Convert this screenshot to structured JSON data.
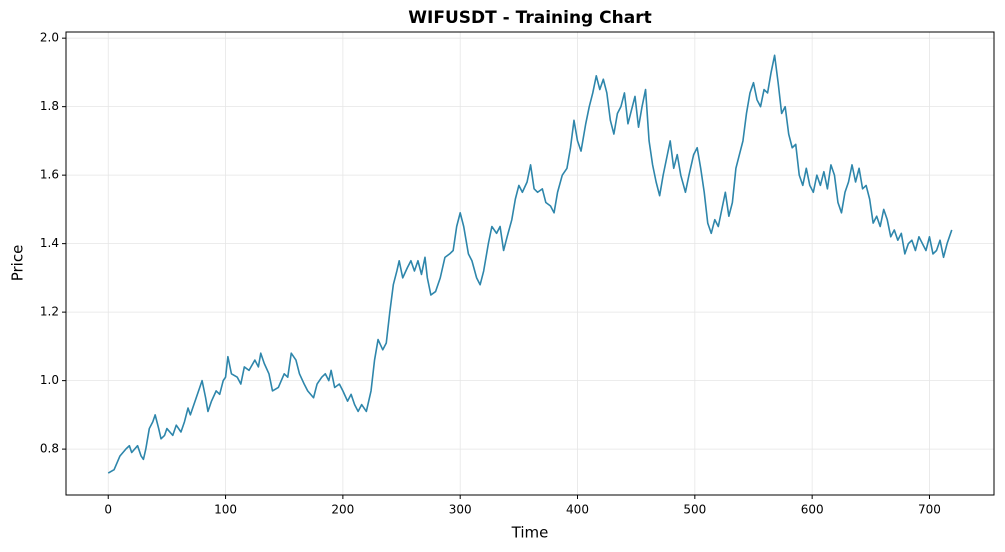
{
  "chart_data": {
    "type": "line",
    "title": "WIFUSDT - Training Chart",
    "x_label": "Time",
    "y_label": "Price",
    "x": [
      0,
      5,
      10,
      15,
      18,
      20,
      25,
      28,
      30,
      32,
      35,
      38,
      40,
      43,
      45,
      48,
      50,
      55,
      58,
      62,
      65,
      68,
      70,
      75,
      78,
      80,
      83,
      85,
      88,
      92,
      95,
      98,
      100,
      102,
      105,
      110,
      113,
      116,
      120,
      125,
      128,
      130,
      133,
      137,
      140,
      145,
      150,
      153,
      156,
      160,
      163,
      167,
      170,
      175,
      178,
      182,
      185,
      188,
      190,
      193,
      197,
      200,
      204,
      207,
      210,
      213,
      216,
      220,
      224,
      227,
      230,
      234,
      237,
      240,
      243,
      246,
      248,
      251,
      255,
      258,
      261,
      264,
      267,
      270,
      272,
      275,
      279,
      283,
      287,
      291,
      294,
      297,
      300,
      303,
      307,
      310,
      314,
      317,
      320,
      324,
      327,
      331,
      334,
      337,
      340,
      344,
      347,
      350,
      353,
      357,
      360,
      363,
      366,
      370,
      373,
      377,
      380,
      383,
      387,
      391,
      394,
      397,
      400,
      403,
      407,
      410,
      413,
      416,
      419,
      422,
      425,
      428,
      431,
      434,
      437,
      440,
      443,
      446,
      449,
      452,
      455,
      458,
      461,
      464,
      467,
      470,
      473,
      476,
      479,
      482,
      485,
      488,
      492,
      495,
      499,
      502,
      505,
      508,
      511,
      514,
      517,
      520,
      523,
      526,
      529,
      532,
      535,
      538,
      541,
      544,
      547,
      550,
      553,
      556,
      559,
      562,
      565,
      568,
      571,
      574,
      577,
      580,
      583,
      586,
      589,
      592,
      595,
      598,
      601,
      604,
      607,
      610,
      613,
      616,
      619,
      622,
      625,
      628,
      631,
      634,
      637,
      640,
      643,
      646,
      649,
      652,
      655,
      658,
      661,
      664,
      667,
      670,
      673,
      676,
      679,
      682,
      685,
      688,
      691,
      694,
      697,
      700,
      703,
      706,
      709,
      712,
      715,
      719
    ],
    "series": [
      {
        "name": "WIFUSDT",
        "color": "#2e86ab",
        "values": [
          0.73,
          0.74,
          0.78,
          0.8,
          0.81,
          0.79,
          0.81,
          0.78,
          0.77,
          0.8,
          0.86,
          0.88,
          0.9,
          0.86,
          0.83,
          0.84,
          0.86,
          0.84,
          0.87,
          0.85,
          0.88,
          0.92,
          0.9,
          0.95,
          0.98,
          1.0,
          0.95,
          0.91,
          0.94,
          0.97,
          0.96,
          1.0,
          1.01,
          1.07,
          1.02,
          1.01,
          0.99,
          1.04,
          1.03,
          1.06,
          1.04,
          1.08,
          1.05,
          1.02,
          0.97,
          0.98,
          1.02,
          1.01,
          1.08,
          1.06,
          1.02,
          0.99,
          0.97,
          0.95,
          0.99,
          1.01,
          1.02,
          1.0,
          1.03,
          0.98,
          0.99,
          0.97,
          0.94,
          0.96,
          0.93,
          0.91,
          0.93,
          0.91,
          0.97,
          1.06,
          1.12,
          1.09,
          1.11,
          1.2,
          1.28,
          1.32,
          1.35,
          1.3,
          1.33,
          1.35,
          1.32,
          1.35,
          1.31,
          1.36,
          1.3,
          1.25,
          1.26,
          1.3,
          1.36,
          1.37,
          1.38,
          1.45,
          1.49,
          1.45,
          1.37,
          1.35,
          1.3,
          1.28,
          1.32,
          1.4,
          1.45,
          1.43,
          1.45,
          1.38,
          1.42,
          1.47,
          1.53,
          1.57,
          1.55,
          1.58,
          1.63,
          1.56,
          1.55,
          1.56,
          1.52,
          1.51,
          1.49,
          1.55,
          1.6,
          1.62,
          1.68,
          1.76,
          1.7,
          1.67,
          1.75,
          1.8,
          1.84,
          1.89,
          1.85,
          1.88,
          1.84,
          1.76,
          1.72,
          1.78,
          1.8,
          1.84,
          1.75,
          1.79,
          1.83,
          1.74,
          1.8,
          1.85,
          1.7,
          1.63,
          1.58,
          1.54,
          1.6,
          1.65,
          1.7,
          1.62,
          1.66,
          1.6,
          1.55,
          1.6,
          1.66,
          1.68,
          1.62,
          1.55,
          1.46,
          1.43,
          1.47,
          1.45,
          1.5,
          1.55,
          1.48,
          1.52,
          1.62,
          1.66,
          1.7,
          1.78,
          1.84,
          1.87,
          1.82,
          1.8,
          1.85,
          1.84,
          1.9,
          1.95,
          1.87,
          1.78,
          1.8,
          1.72,
          1.68,
          1.69,
          1.6,
          1.57,
          1.62,
          1.57,
          1.55,
          1.6,
          1.57,
          1.61,
          1.56,
          1.63,
          1.6,
          1.52,
          1.49,
          1.55,
          1.58,
          1.63,
          1.58,
          1.62,
          1.56,
          1.57,
          1.53,
          1.46,
          1.48,
          1.45,
          1.5,
          1.47,
          1.42,
          1.44,
          1.41,
          1.43,
          1.37,
          1.4,
          1.41,
          1.38,
          1.42,
          1.4,
          1.38,
          1.42,
          1.37,
          1.38,
          1.41,
          1.36,
          1.4,
          1.44
        ]
      }
    ],
    "xlim": [
      -36,
      755
    ],
    "ylim": [
      0.666,
      2.018
    ],
    "xticks": [
      0,
      100,
      200,
      300,
      400,
      500,
      600,
      700
    ],
    "yticks": [
      0.8,
      {
        "value": 1,
        "label": "1.0"
      },
      1.2,
      1.4,
      1.6,
      1.8,
      {
        "value": 2,
        "label": "2.0"
      }
    ],
    "grid": true
  }
}
